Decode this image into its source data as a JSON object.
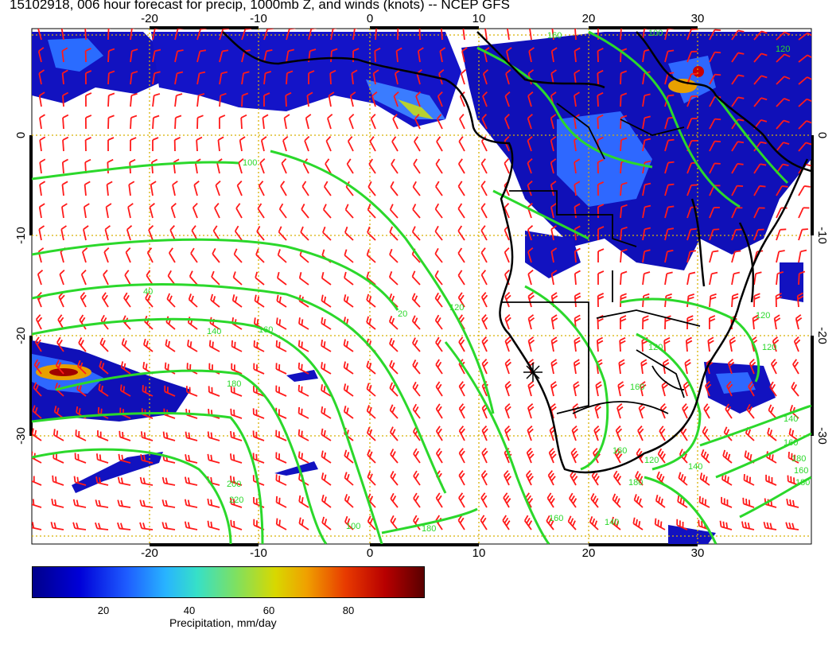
{
  "title": "15102918, 006 hour forecast for precip, 1000mb Z, and winds (knots) -- NCEP GFS",
  "map": {
    "lon_range": [
      -30,
      40
    ],
    "lat_range": [
      -40,
      10
    ],
    "lon_ticks": [
      "-20",
      "-10",
      "0",
      "10",
      "20",
      "30"
    ],
    "lat_ticks": [
      "0",
      "-10",
      "-20",
      "-30"
    ],
    "contour_labels": [
      "100",
      "120",
      "140",
      "160",
      "180",
      "120",
      "140",
      "160",
      "180",
      "160",
      "120",
      "100",
      "160",
      "140",
      "180",
      "100",
      "160",
      "40",
      "20",
      "160",
      "140",
      "120",
      "120",
      "180",
      "200",
      "220",
      "180",
      "160",
      "120"
    ]
  },
  "colorbar": {
    "ticks": [
      "20",
      "40",
      "60",
      "80"
    ],
    "label": "Precipitation, mm/day",
    "colors": [
      "#00008b",
      "#0000d8",
      "#1e5cff",
      "#28b4ff",
      "#36e0c8",
      "#7fe060",
      "#d8d800",
      "#f0a000",
      "#e83a00",
      "#b80000",
      "#5a0000"
    ]
  },
  "colors": {
    "contour": "#2bd82b",
    "wind_barb": "#ff1a1a",
    "grid": "#d8b000",
    "coast": "#000000"
  }
}
